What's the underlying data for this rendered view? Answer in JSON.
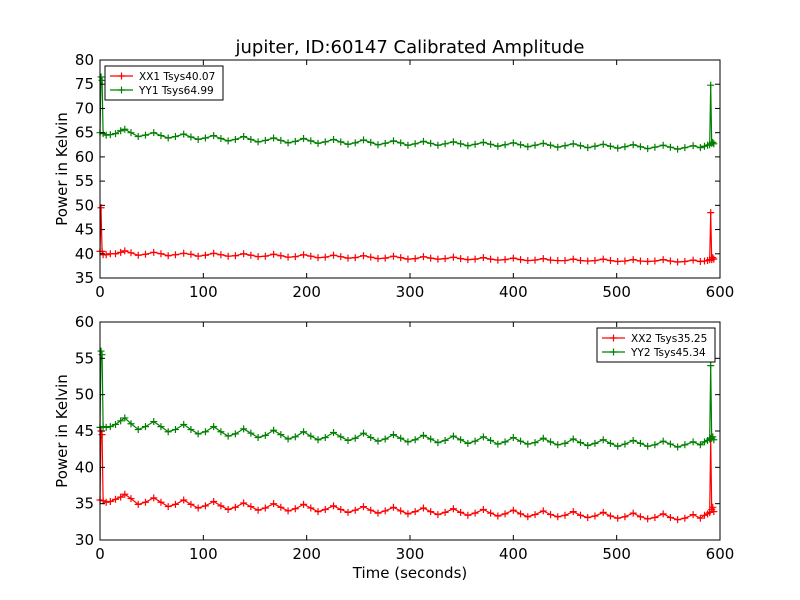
{
  "figure": {
    "title": "jupiter, ID:60147 Calibrated Amplitude",
    "xlabel": "Time (seconds)"
  },
  "colors": {
    "red": "#ff0000",
    "green": "#008000"
  },
  "chart_data": [
    {
      "type": "line",
      "title": "jupiter, ID:60147 Calibrated Amplitude",
      "xlabel": "",
      "ylabel": "Power in Kelvin",
      "xlim": [
        0,
        600
      ],
      "ylim": [
        35,
        80
      ],
      "xticks": [
        "0",
        "100",
        "200",
        "300",
        "400",
        "500",
        "600"
      ],
      "yticks": [
        "35",
        "40",
        "45",
        "50",
        "55",
        "60",
        "65",
        "70",
        "75",
        "80"
      ],
      "grid": false,
      "legend_position": "top-left",
      "series": [
        {
          "name": "XX1 Tsys40.07",
          "color": "#ff0000",
          "marker": "+",
          "x": [
            0,
            1,
            2,
            3,
            6,
            10,
            15,
            20,
            24,
            30,
            37,
            44,
            52,
            59,
            66,
            73,
            81,
            88,
            95,
            102,
            110,
            117,
            124,
            131,
            139,
            146,
            153,
            160,
            168,
            175,
            182,
            189,
            197,
            204,
            211,
            218,
            226,
            233,
            240,
            247,
            255,
            262,
            269,
            276,
            284,
            291,
            298,
            305,
            313,
            320,
            327,
            334,
            342,
            349,
            356,
            363,
            371,
            378,
            385,
            392,
            400,
            407,
            414,
            421,
            429,
            436,
            443,
            450,
            458,
            465,
            472,
            479,
            487,
            494,
            501,
            508,
            516,
            523,
            530,
            537,
            545,
            552,
            559,
            566,
            574,
            581,
            585,
            588,
            590,
            591,
            592,
            593,
            594
          ],
          "y": [
            40.5,
            49.5,
            40.5,
            39.8,
            39.8,
            40.0,
            40.0,
            40.3,
            40.6,
            40.2,
            39.7,
            39.9,
            40.3,
            40.0,
            39.6,
            39.8,
            40.1,
            39.9,
            39.5,
            39.7,
            40.1,
            39.8,
            39.5,
            39.6,
            40.0,
            39.7,
            39.4,
            39.5,
            39.9,
            39.6,
            39.3,
            39.4,
            39.8,
            39.5,
            39.2,
            39.3,
            39.7,
            39.4,
            39.1,
            39.2,
            39.6,
            39.3,
            39.0,
            39.1,
            39.5,
            39.2,
            38.9,
            39.0,
            39.4,
            39.1,
            38.9,
            39.0,
            39.3,
            39.0,
            38.8,
            38.9,
            39.2,
            38.9,
            38.7,
            38.8,
            39.1,
            38.8,
            38.6,
            38.7,
            39.0,
            38.7,
            38.6,
            38.6,
            38.9,
            38.6,
            38.5,
            38.6,
            38.9,
            38.6,
            38.4,
            38.5,
            38.8,
            38.5,
            38.4,
            38.5,
            38.8,
            38.5,
            38.3,
            38.4,
            38.7,
            38.4,
            38.5,
            38.6,
            38.8,
            48.5,
            38.8,
            39.2,
            38.9
          ]
        },
        {
          "name": "YY1 Tsys64.99",
          "color": "#008000",
          "marker": "+",
          "x": [
            0,
            1,
            2,
            3,
            6,
            10,
            15,
            20,
            24,
            30,
            37,
            44,
            52,
            59,
            66,
            73,
            81,
            88,
            95,
            102,
            110,
            117,
            124,
            131,
            139,
            146,
            153,
            160,
            168,
            175,
            182,
            189,
            197,
            204,
            211,
            218,
            226,
            233,
            240,
            247,
            255,
            262,
            269,
            276,
            284,
            291,
            298,
            305,
            313,
            320,
            327,
            334,
            342,
            349,
            356,
            363,
            371,
            378,
            385,
            392,
            400,
            407,
            414,
            421,
            429,
            436,
            443,
            450,
            458,
            465,
            472,
            479,
            487,
            494,
            501,
            508,
            516,
            523,
            530,
            537,
            545,
            552,
            559,
            566,
            574,
            581,
            585,
            588,
            590,
            591,
            592,
            593,
            594
          ],
          "y": [
            65.0,
            76.5,
            75.8,
            64.8,
            64.5,
            64.6,
            64.8,
            65.4,
            65.7,
            65.0,
            64.2,
            64.5,
            65.0,
            64.4,
            63.9,
            64.2,
            64.7,
            64.1,
            63.6,
            63.9,
            64.4,
            63.8,
            63.3,
            63.6,
            64.2,
            63.6,
            63.1,
            63.4,
            63.9,
            63.4,
            62.9,
            63.2,
            63.8,
            63.3,
            62.8,
            63.1,
            63.6,
            63.1,
            62.6,
            62.9,
            63.5,
            63.0,
            62.5,
            62.8,
            63.3,
            62.9,
            62.4,
            62.7,
            63.2,
            62.8,
            62.4,
            62.7,
            63.1,
            62.7,
            62.3,
            62.6,
            63.0,
            62.6,
            62.2,
            62.5,
            62.9,
            62.5,
            62.1,
            62.4,
            62.8,
            62.4,
            62.0,
            62.3,
            62.7,
            62.3,
            61.9,
            62.2,
            62.6,
            62.2,
            61.8,
            62.1,
            62.5,
            62.1,
            61.7,
            62.0,
            62.4,
            62.0,
            61.6,
            61.9,
            62.3,
            61.9,
            62.2,
            62.4,
            62.5,
            74.8,
            62.8,
            63.0,
            62.7
          ]
        }
      ]
    },
    {
      "type": "line",
      "title": "",
      "xlabel": "Time (seconds)",
      "ylabel": "Power in Kelvin",
      "xlim": [
        0,
        600
      ],
      "ylim": [
        30,
        60
      ],
      "xticks": [
        "0",
        "100",
        "200",
        "300",
        "400",
        "500",
        "600"
      ],
      "yticks": [
        "30",
        "35",
        "40",
        "45",
        "50",
        "55",
        "60"
      ],
      "grid": false,
      "legend_position": "top-right",
      "series": [
        {
          "name": "XX2 Tsys35.25",
          "color": "#ff0000",
          "marker": "+",
          "x": [
            0,
            1,
            2,
            3,
            6,
            10,
            15,
            20,
            24,
            30,
            37,
            44,
            52,
            59,
            66,
            73,
            81,
            88,
            95,
            102,
            110,
            117,
            124,
            131,
            139,
            146,
            153,
            160,
            168,
            175,
            182,
            189,
            197,
            204,
            211,
            218,
            226,
            233,
            240,
            247,
            255,
            262,
            269,
            276,
            284,
            291,
            298,
            305,
            313,
            320,
            327,
            334,
            342,
            349,
            356,
            363,
            371,
            378,
            385,
            392,
            400,
            407,
            414,
            421,
            429,
            436,
            443,
            450,
            458,
            465,
            472,
            479,
            487,
            494,
            501,
            508,
            516,
            523,
            530,
            537,
            545,
            552,
            559,
            566,
            574,
            581,
            585,
            588,
            590,
            591,
            592,
            593,
            594
          ],
          "y": [
            35.5,
            45.0,
            44.5,
            35.4,
            35.2,
            35.3,
            35.6,
            35.9,
            36.3,
            35.7,
            34.9,
            35.2,
            35.8,
            35.2,
            34.6,
            34.9,
            35.5,
            34.9,
            34.4,
            34.7,
            35.3,
            34.7,
            34.2,
            34.5,
            35.1,
            34.6,
            34.1,
            34.4,
            35.0,
            34.5,
            34.0,
            34.3,
            34.9,
            34.4,
            33.9,
            34.2,
            34.7,
            34.2,
            33.8,
            34.1,
            34.6,
            34.1,
            33.7,
            34.0,
            34.5,
            34.0,
            33.6,
            33.9,
            34.4,
            33.9,
            33.5,
            33.8,
            34.3,
            33.8,
            33.4,
            33.7,
            34.2,
            33.7,
            33.3,
            33.6,
            34.1,
            33.6,
            33.2,
            33.5,
            34.0,
            33.5,
            33.2,
            33.4,
            33.9,
            33.4,
            33.1,
            33.3,
            33.8,
            33.3,
            33.0,
            33.2,
            33.7,
            33.2,
            32.9,
            33.1,
            33.6,
            33.1,
            32.8,
            33.0,
            33.5,
            33.0,
            33.4,
            33.6,
            33.8,
            44.0,
            34.2,
            34.5,
            33.9
          ]
        },
        {
          "name": "YY2 Tsys45.34",
          "color": "#008000",
          "marker": "+",
          "x": [
            0,
            1,
            2,
            3,
            6,
            10,
            15,
            20,
            24,
            30,
            37,
            44,
            52,
            59,
            66,
            73,
            81,
            88,
            95,
            102,
            110,
            117,
            124,
            131,
            139,
            146,
            153,
            160,
            168,
            175,
            182,
            189,
            197,
            204,
            211,
            218,
            226,
            233,
            240,
            247,
            255,
            262,
            269,
            276,
            284,
            291,
            298,
            305,
            313,
            320,
            327,
            334,
            342,
            349,
            356,
            363,
            371,
            378,
            385,
            392,
            400,
            407,
            414,
            421,
            429,
            436,
            443,
            450,
            458,
            465,
            472,
            479,
            487,
            494,
            501,
            508,
            516,
            523,
            530,
            537,
            545,
            552,
            559,
            566,
            574,
            581,
            585,
            588,
            590,
            591,
            592,
            593,
            594
          ],
          "y": [
            45.5,
            56.0,
            55.5,
            45.6,
            45.5,
            45.6,
            45.9,
            46.4,
            46.8,
            46.0,
            45.2,
            45.6,
            46.3,
            45.6,
            44.9,
            45.2,
            45.9,
            45.2,
            44.6,
            44.9,
            45.6,
            44.9,
            44.3,
            44.6,
            45.3,
            44.7,
            44.1,
            44.4,
            45.1,
            44.5,
            43.9,
            44.2,
            44.9,
            44.3,
            43.8,
            44.1,
            44.8,
            44.2,
            43.7,
            44.0,
            44.7,
            44.1,
            43.6,
            43.9,
            44.5,
            44.0,
            43.5,
            43.8,
            44.4,
            43.9,
            43.4,
            43.7,
            44.3,
            43.8,
            43.3,
            43.6,
            44.2,
            43.7,
            43.2,
            43.5,
            44.1,
            43.6,
            43.2,
            43.4,
            44.0,
            43.5,
            43.1,
            43.3,
            43.9,
            43.4,
            43.0,
            43.3,
            43.8,
            43.3,
            42.9,
            43.2,
            43.7,
            43.3,
            42.9,
            43.1,
            43.6,
            43.2,
            42.8,
            43.1,
            43.5,
            43.1,
            43.5,
            43.7,
            43.9,
            54.0,
            44.0,
            44.2,
            43.8
          ]
        }
      ]
    }
  ]
}
